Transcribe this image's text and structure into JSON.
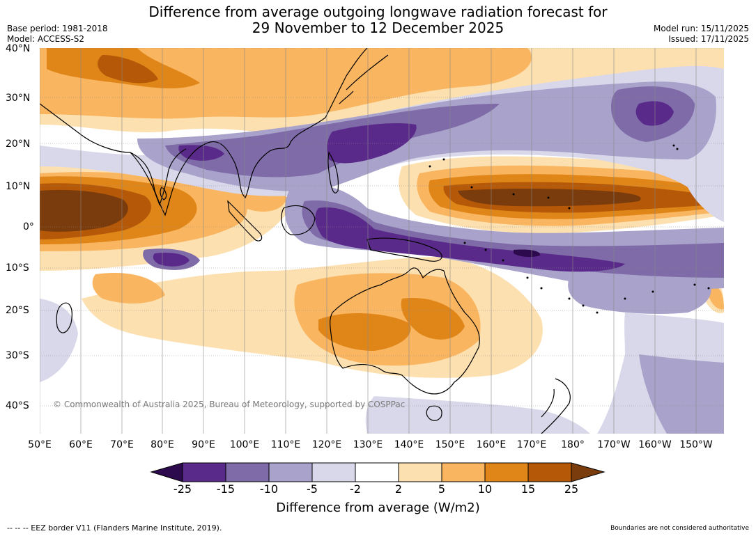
{
  "title": {
    "line1": "Difference from average outgoing longwave radiation forecast for",
    "line2": "29 November to 12 December 2025"
  },
  "meta_left": {
    "base_period": "Base period: 1981-2018",
    "model": "Model: ACCESS-S2"
  },
  "meta_right": {
    "model_run": "Model run: 15/11/2025",
    "issued": "Issued: 17/11/2025"
  },
  "latitude_labels": [
    "40°N",
    "30°N",
    "20°N",
    "10°N",
    "0°",
    "10°S",
    "20°S",
    "30°S",
    "40°S"
  ],
  "longitude_labels": [
    "50°E",
    "60°E",
    "70°E",
    "80°E",
    "90°E",
    "100°E",
    "110°E",
    "120°E",
    "130°E",
    "140°E",
    "150°E",
    "160°E",
    "170°E",
    "180°",
    "170°W",
    "160°W",
    "150°W"
  ],
  "copyright": "© Commonwealth of Australia 2025, Bureau of Meteorology, supported by COSPPac",
  "colorbar": {
    "ticks": [
      "-25",
      "-15",
      "-10",
      "-5",
      "-2",
      "2",
      "5",
      "10",
      "15",
      "25"
    ],
    "colors": [
      "#2d0a4e",
      "#5a2a8a",
      "#7e6ba8",
      "#a9a2cb",
      "#d8d8ea",
      "#ffffff",
      "#fde0b0",
      "#f9b560",
      "#e08618",
      "#b55808",
      "#7a3c0c"
    ],
    "title": "Difference from average (W/m2)"
  },
  "footer": {
    "left": "--  --  -- EEZ border V11 (Flanders Marine Institute, 2019).",
    "right": "Boundaries are not considered authoritative"
  }
}
